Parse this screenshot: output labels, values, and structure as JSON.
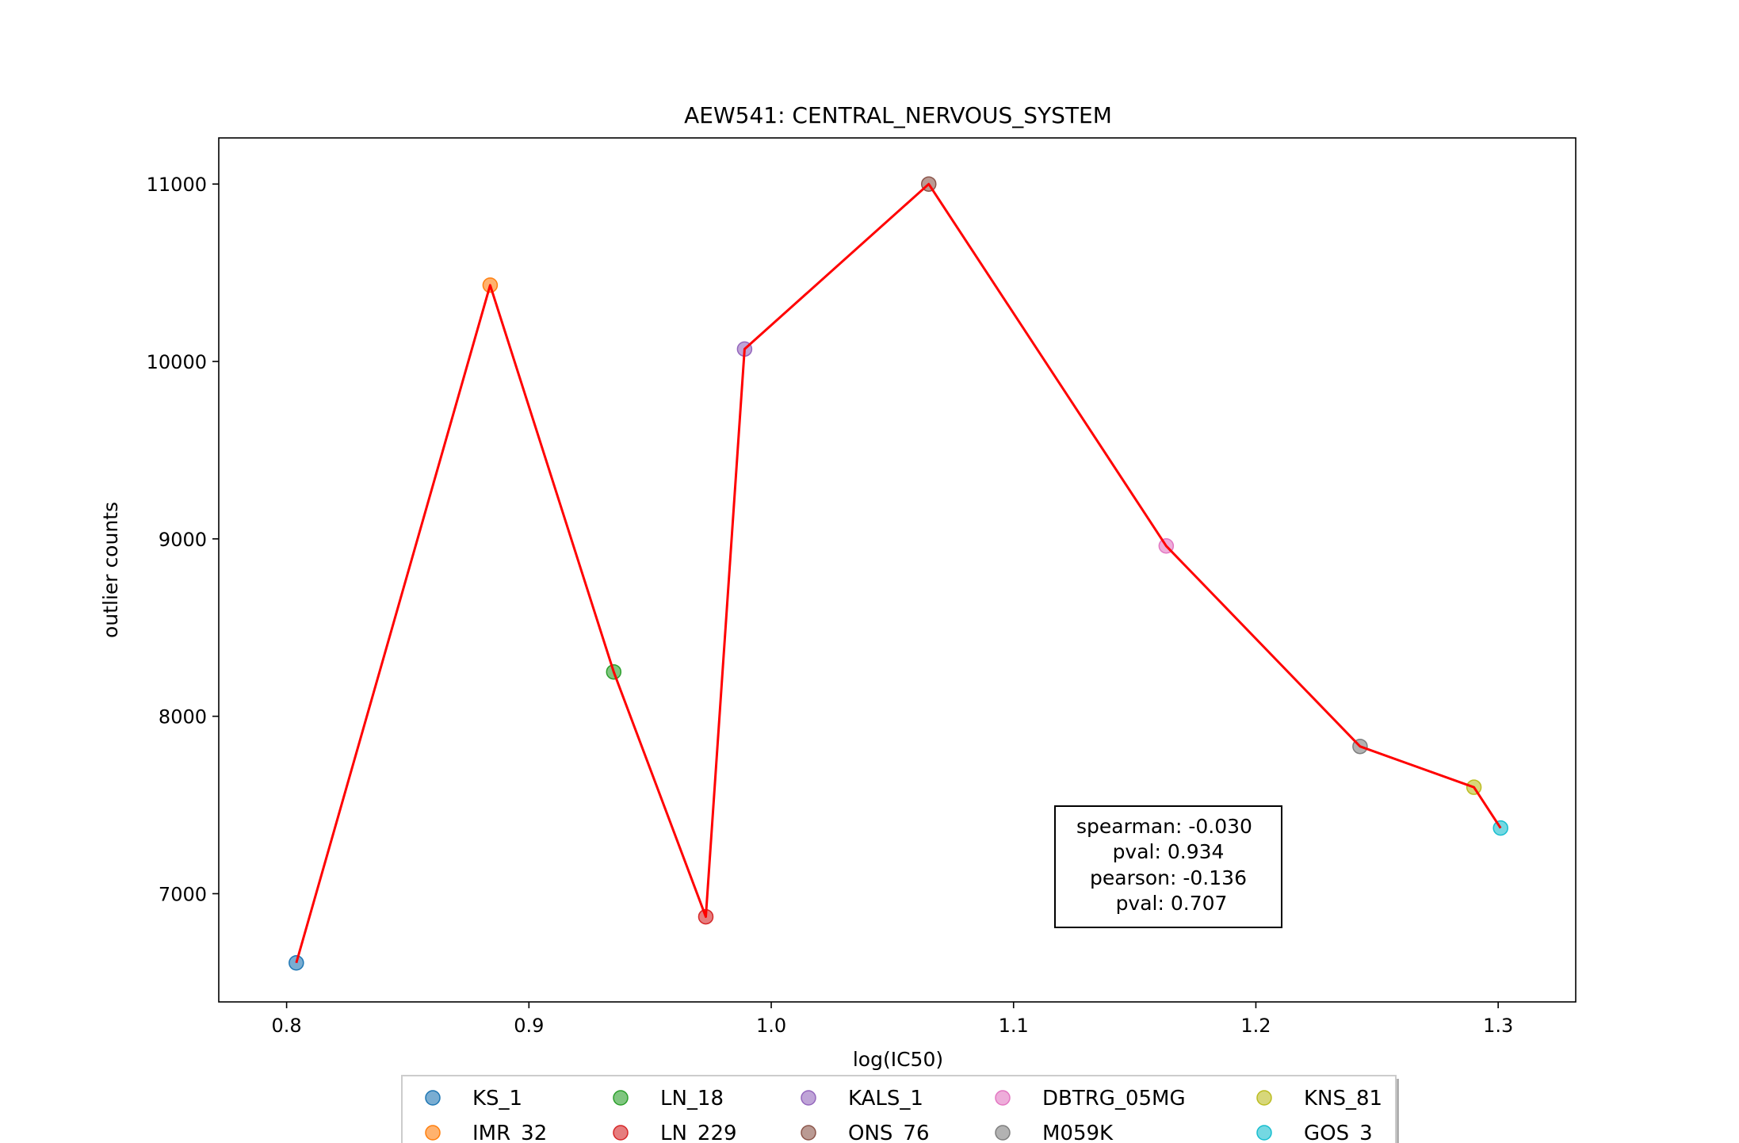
{
  "chart_data": {
    "type": "scatter",
    "title": "AEW541: CENTRAL_NERVOUS_SYSTEM",
    "xlabel": "log(IC50)",
    "ylabel": "outlier counts",
    "xlim": [
      0.772,
      1.332
    ],
    "ylim": [
      6390,
      11260
    ],
    "xticks": [
      0.8,
      0.9,
      1.0,
      1.1,
      1.2,
      1.3
    ],
    "xtick_labels": [
      "0.8",
      "0.9",
      "1.0",
      "1.1",
      "1.2",
      "1.3"
    ],
    "yticks": [
      7000,
      8000,
      9000,
      10000,
      11000
    ],
    "ytick_labels": [
      "7000",
      "8000",
      "9000",
      "10000",
      "11000"
    ],
    "grid": false,
    "legend_position": "bottom",
    "line_color": "#ff0000",
    "series": [
      {
        "name": "KS_1",
        "x": 0.804,
        "y": 6610,
        "color": "#1f77b4"
      },
      {
        "name": "IMR_32",
        "x": 0.884,
        "y": 10430,
        "color": "#ff7f0e"
      },
      {
        "name": "LN_18",
        "x": 0.935,
        "y": 8250,
        "color": "#2ca02c"
      },
      {
        "name": "LN_229",
        "x": 0.973,
        "y": 6870,
        "color": "#d62728"
      },
      {
        "name": "KALS_1",
        "x": 0.989,
        "y": 10070,
        "color": "#9467bd"
      },
      {
        "name": "ONS_76",
        "x": 1.065,
        "y": 11000,
        "color": "#8c564b"
      },
      {
        "name": "DBTRG_05MG",
        "x": 1.163,
        "y": 8960,
        "color": "#e377c2"
      },
      {
        "name": "M059K",
        "x": 1.243,
        "y": 7830,
        "color": "#7f7f7f"
      },
      {
        "name": "KNS_81",
        "x": 1.29,
        "y": 7600,
        "color": "#bcbd22"
      },
      {
        "name": "GOS_3",
        "x": 1.301,
        "y": 7370,
        "color": "#17becf"
      }
    ],
    "annotation": {
      "lines": [
        "spearman: -0.030",
        "pval: 0.934",
        "pearson: -0.136",
        "pval: 0.707"
      ]
    }
  }
}
